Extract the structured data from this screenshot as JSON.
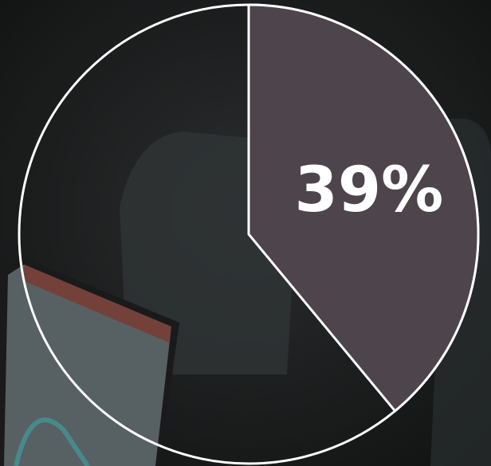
{
  "chart_data": {
    "type": "pie",
    "values": [
      39
    ],
    "value_labels": [
      "39%"
    ],
    "color": "#4d444c"
  }
}
